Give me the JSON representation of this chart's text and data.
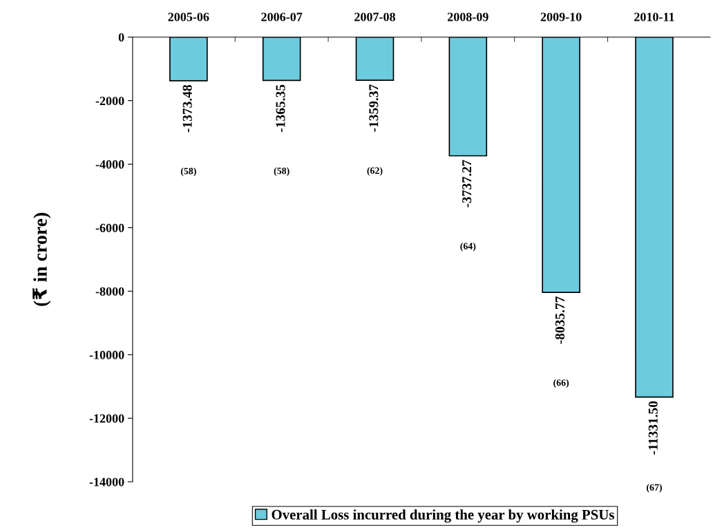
{
  "chart_data": {
    "type": "bar",
    "categories": [
      "2005-06",
      "2006-07",
      "2007-08",
      "2008-09",
      "2009-10",
      "2010-11"
    ],
    "series": [
      {
        "name": "Overall Loss incurred during the year by working PSUs",
        "color": "#6ccbdc",
        "values": [
          -1373.48,
          -1365.35,
          -1359.37,
          -3737.27,
          -8035.77,
          -11331.5
        ],
        "value_labels": [
          "-1373.48",
          "-1365.35",
          "-1359.37",
          "-3737.27",
          "-8035.77",
          "-11331.50"
        ]
      }
    ],
    "ylabel": "(₹ in crore)",
    "ylim": [
      -14000,
      0
    ],
    "yticks": [
      -14000,
      -12000,
      -10000,
      -8000,
      -6000,
      -4000,
      -2000,
      0
    ],
    "annotations": [
      "(58)",
      "(58)",
      "(62)",
      "(64)",
      "(66)",
      "(67)"
    ],
    "grid": false,
    "legend": "bottom"
  }
}
